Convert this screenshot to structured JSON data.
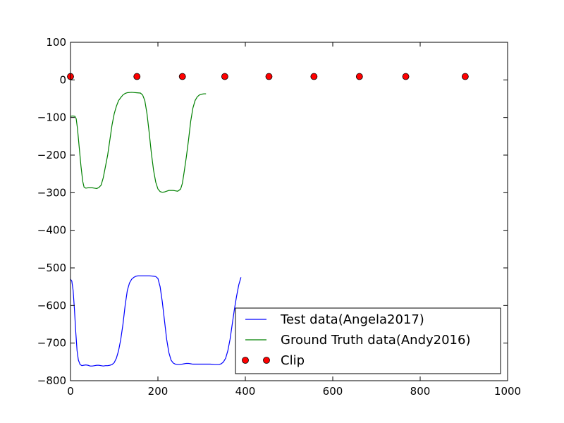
{
  "chart_data": {
    "type": "line",
    "title": "",
    "xlabel": "",
    "ylabel": "",
    "xlim": [
      0,
      1000
    ],
    "ylim": [
      -800,
      100
    ],
    "x_ticks": [
      0,
      200,
      400,
      600,
      800,
      1000
    ],
    "y_ticks": [
      100,
      0,
      -100,
      -200,
      -300,
      -400,
      -500,
      -600,
      -700,
      -800
    ],
    "x_tick_labels": [
      "0",
      "200",
      "400",
      "600",
      "800",
      "1000"
    ],
    "y_tick_labels": [
      "100",
      "0",
      "−100",
      "−200",
      "−300",
      "−400",
      "−500",
      "−600",
      "−700",
      "−800"
    ],
    "grid": false,
    "legend_position": "lower-right",
    "series": [
      {
        "name": "Test data(Angela2017)",
        "kind": "line",
        "color": "#0000ff",
        "points": [
          [
            0,
            -530
          ],
          [
            3,
            -535
          ],
          [
            6,
            -560
          ],
          [
            9,
            -610
          ],
          [
            12,
            -670
          ],
          [
            15,
            -720
          ],
          [
            18,
            -745
          ],
          [
            22,
            -757
          ],
          [
            26,
            -760
          ],
          [
            30,
            -759
          ],
          [
            35,
            -758
          ],
          [
            40,
            -759
          ],
          [
            45,
            -761
          ],
          [
            50,
            -761
          ],
          [
            55,
            -760
          ],
          [
            60,
            -759
          ],
          [
            65,
            -759
          ],
          [
            70,
            -760
          ],
          [
            75,
            -761
          ],
          [
            80,
            -760
          ],
          [
            85,
            -760
          ],
          [
            90,
            -759
          ],
          [
            95,
            -757
          ],
          [
            100,
            -752
          ],
          [
            105,
            -740
          ],
          [
            110,
            -720
          ],
          [
            115,
            -690
          ],
          [
            120,
            -650
          ],
          [
            125,
            -600
          ],
          [
            130,
            -560
          ],
          [
            135,
            -540
          ],
          [
            140,
            -530
          ],
          [
            145,
            -525
          ],
          [
            150,
            -522
          ],
          [
            155,
            -521
          ],
          [
            160,
            -521
          ],
          [
            170,
            -521
          ],
          [
            180,
            -521
          ],
          [
            190,
            -522
          ],
          [
            195,
            -523
          ],
          [
            200,
            -528
          ],
          [
            205,
            -550
          ],
          [
            210,
            -590
          ],
          [
            215,
            -640
          ],
          [
            220,
            -690
          ],
          [
            225,
            -725
          ],
          [
            230,
            -745
          ],
          [
            235,
            -753
          ],
          [
            240,
            -756
          ],
          [
            245,
            -757
          ],
          [
            250,
            -757
          ],
          [
            255,
            -756
          ],
          [
            260,
            -755
          ],
          [
            265,
            -754
          ],
          [
            270,
            -754
          ],
          [
            275,
            -755
          ],
          [
            280,
            -756
          ],
          [
            290,
            -756
          ],
          [
            300,
            -756
          ],
          [
            310,
            -756
          ],
          [
            320,
            -756
          ],
          [
            330,
            -757
          ],
          [
            340,
            -757
          ],
          [
            345,
            -755
          ],
          [
            350,
            -750
          ],
          [
            355,
            -740
          ],
          [
            360,
            -720
          ],
          [
            365,
            -690
          ],
          [
            370,
            -650
          ],
          [
            375,
            -610
          ],
          [
            380,
            -575
          ],
          [
            385,
            -545
          ],
          [
            390,
            -525
          ]
        ]
      },
      {
        "name": "Ground Truth data(Andy2016)",
        "kind": "line",
        "color": "#008000",
        "points": [
          [
            0,
            -97
          ],
          [
            5,
            -96
          ],
          [
            10,
            -97
          ],
          [
            13,
            -103
          ],
          [
            16,
            -130
          ],
          [
            20,
            -180
          ],
          [
            24,
            -230
          ],
          [
            28,
            -270
          ],
          [
            31,
            -285
          ],
          [
            35,
            -288
          ],
          [
            40,
            -287
          ],
          [
            45,
            -287
          ],
          [
            50,
            -287
          ],
          [
            55,
            -288
          ],
          [
            60,
            -289
          ],
          [
            65,
            -286
          ],
          [
            70,
            -280
          ],
          [
            75,
            -260
          ],
          [
            80,
            -230
          ],
          [
            85,
            -200
          ],
          [
            90,
            -160
          ],
          [
            95,
            -120
          ],
          [
            100,
            -90
          ],
          [
            105,
            -70
          ],
          [
            110,
            -55
          ],
          [
            115,
            -47
          ],
          [
            120,
            -40
          ],
          [
            125,
            -36
          ],
          [
            130,
            -34
          ],
          [
            140,
            -33
          ],
          [
            150,
            -34
          ],
          [
            160,
            -35
          ],
          [
            165,
            -40
          ],
          [
            170,
            -55
          ],
          [
            175,
            -90
          ],
          [
            180,
            -140
          ],
          [
            185,
            -195
          ],
          [
            190,
            -240
          ],
          [
            195,
            -272
          ],
          [
            200,
            -290
          ],
          [
            205,
            -297
          ],
          [
            210,
            -299
          ],
          [
            215,
            -298
          ],
          [
            220,
            -296
          ],
          [
            225,
            -294
          ],
          [
            230,
            -294
          ],
          [
            235,
            -294
          ],
          [
            240,
            -295
          ],
          [
            245,
            -296
          ],
          [
            248,
            -294
          ],
          [
            252,
            -290
          ],
          [
            256,
            -275
          ],
          [
            260,
            -245
          ],
          [
            265,
            -205
          ],
          [
            270,
            -160
          ],
          [
            275,
            -110
          ],
          [
            280,
            -75
          ],
          [
            285,
            -55
          ],
          [
            290,
            -45
          ],
          [
            295,
            -40
          ],
          [
            300,
            -38
          ],
          [
            305,
            -37
          ],
          [
            310,
            -37
          ]
        ]
      },
      {
        "name": "Clip",
        "kind": "marker",
        "color": "#ff0000",
        "points": [
          [
            0,
            9
          ],
          [
            152,
            9
          ],
          [
            256,
            9
          ],
          [
            353,
            9
          ],
          [
            454,
            9
          ],
          [
            557,
            9
          ],
          [
            661,
            9
          ],
          [
            767,
            9
          ],
          [
            903,
            9
          ]
        ]
      }
    ]
  }
}
